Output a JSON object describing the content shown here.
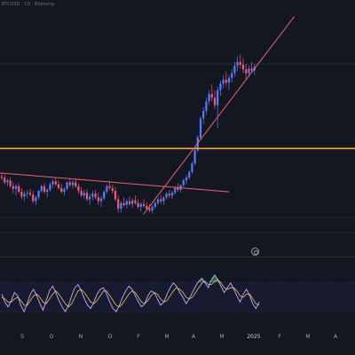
{
  "header": {
    "title": "BTCUSD · 1D · Bitstamp"
  },
  "price_pane": {
    "candles": [
      [
        48,
        52,
        44,
        47
      ],
      [
        47,
        50,
        40,
        42
      ],
      [
        42,
        46,
        38,
        44
      ],
      [
        44,
        47,
        36,
        38
      ],
      [
        38,
        42,
        30,
        35
      ],
      [
        35,
        40,
        28,
        38
      ],
      [
        38,
        41,
        30,
        32
      ],
      [
        32,
        36,
        24,
        27
      ],
      [
        27,
        33,
        22,
        30
      ],
      [
        30,
        34,
        25,
        31
      ],
      [
        31,
        35,
        27,
        29
      ],
      [
        29,
        33,
        20,
        22
      ],
      [
        22,
        28,
        18,
        26
      ],
      [
        26,
        34,
        24,
        33
      ],
      [
        33,
        40,
        31,
        38
      ],
      [
        38,
        41,
        30,
        32
      ],
      [
        32,
        36,
        26,
        34
      ],
      [
        34,
        42,
        32,
        40
      ],
      [
        40,
        45,
        36,
        43
      ],
      [
        43,
        47,
        38,
        40
      ],
      [
        40,
        44,
        34,
        36
      ],
      [
        36,
        40,
        30,
        32
      ],
      [
        32,
        37,
        28,
        35
      ],
      [
        35,
        43,
        33,
        42
      ],
      [
        42,
        46,
        37,
        39
      ],
      [
        39,
        44,
        35,
        42
      ],
      [
        42,
        46,
        36,
        38
      ],
      [
        38,
        41,
        30,
        33
      ],
      [
        33,
        37,
        26,
        28
      ],
      [
        28,
        34,
        24,
        31
      ],
      [
        31,
        35,
        22,
        24
      ],
      [
        24,
        30,
        18,
        27
      ],
      [
        27,
        33,
        23,
        30
      ],
      [
        30,
        34,
        24,
        26
      ],
      [
        26,
        31,
        18,
        22
      ],
      [
        22,
        28,
        16,
        25
      ],
      [
        25,
        34,
        23,
        32
      ],
      [
        32,
        40,
        30,
        38
      ],
      [
        38,
        44,
        34,
        36
      ],
      [
        36,
        40,
        30,
        33
      ],
      [
        33,
        37,
        22,
        24
      ],
      [
        24,
        28,
        10,
        14
      ],
      [
        14,
        22,
        10,
        20
      ],
      [
        20,
        26,
        16,
        18
      ],
      [
        18,
        24,
        14,
        22
      ],
      [
        22,
        27,
        17,
        19
      ],
      [
        19,
        25,
        15,
        23
      ],
      [
        23,
        28,
        18,
        20
      ],
      [
        20,
        24,
        14,
        16
      ],
      [
        16,
        21,
        11,
        19
      ],
      [
        19,
        24,
        15,
        17
      ],
      [
        17,
        21,
        12,
        14
      ],
      [
        14,
        19,
        10,
        12
      ],
      [
        12,
        18,
        9,
        16
      ],
      [
        16,
        22,
        14,
        20
      ],
      [
        20,
        26,
        18,
        24
      ],
      [
        24,
        28,
        19,
        22
      ],
      [
        22,
        27,
        18,
        26
      ],
      [
        26,
        32,
        24,
        30
      ],
      [
        30,
        34,
        25,
        28
      ],
      [
        28,
        33,
        24,
        31
      ],
      [
        31,
        38,
        29,
        36
      ],
      [
        36,
        41,
        32,
        34
      ],
      [
        34,
        40,
        31,
        39
      ],
      [
        39,
        46,
        37,
        44
      ],
      [
        44,
        50,
        40,
        47
      ],
      [
        47,
        55,
        45,
        53
      ],
      [
        53,
        64,
        51,
        62
      ],
      [
        62,
        78,
        60,
        76
      ],
      [
        76,
        92,
        74,
        90
      ],
      [
        90,
        112,
        88,
        110
      ],
      [
        110,
        122,
        104,
        118
      ],
      [
        118,
        132,
        114,
        128
      ],
      [
        128,
        140,
        124,
        136
      ],
      [
        136,
        146,
        128,
        132
      ],
      [
        132,
        140,
        120,
        124
      ],
      [
        124,
        144,
        100,
        140
      ],
      [
        140,
        150,
        134,
        147
      ],
      [
        147,
        156,
        142,
        151
      ],
      [
        151,
        160,
        144,
        148
      ],
      [
        148,
        156,
        140,
        153
      ],
      [
        153,
        162,
        148,
        158
      ],
      [
        158,
        170,
        154,
        166
      ],
      [
        166,
        176,
        160,
        170
      ],
      [
        170,
        178,
        163,
        167
      ],
      [
        167,
        174,
        158,
        162
      ],
      [
        162,
        168,
        152,
        158
      ],
      [
        158,
        166,
        154,
        163
      ],
      [
        163,
        170,
        158,
        161
      ],
      [
        161,
        168,
        156,
        165
      ]
    ],
    "horizontal_level": 78,
    "resistance_line": {
      "from": [
        0,
        52
      ],
      "to": [
        100,
        32
      ],
      "color": "#e8636f"
    },
    "support_line": {
      "from": [
        53,
        8
      ],
      "to": [
        128,
        190
      ],
      "color": "#e8636f"
    },
    "level_color": "#f7a53b",
    "up_color": "#5b7cfa",
    "down_color": "#ef5a7a"
  },
  "oscillator": {
    "main": [
      0.2,
      -0.3,
      -0.6,
      -0.2,
      0.3,
      0.1,
      -0.5,
      -0.9,
      -0.4,
      0.2,
      0.5,
      0.1,
      -0.4,
      -0.8,
      -0.2,
      0.4,
      0.7,
      0.3,
      -0.2,
      -0.6,
      -0.9,
      -0.5,
      0.1,
      0.6,
      0.8,
      0.4,
      -0.1,
      -0.5,
      -0.7,
      -0.3,
      0.2,
      0.5,
      0.6,
      0.2,
      -0.3,
      -0.7,
      -0.9,
      -0.5,
      0.0,
      0.4,
      0.7,
      0.5,
      0.1,
      -0.3,
      -0.6,
      -0.4,
      0.1,
      0.4,
      0.3,
      -0.1,
      -0.5,
      -0.3,
      0.2,
      0.6,
      0.9,
      0.7,
      0.3,
      0.0,
      -0.4,
      -0.1,
      0.3,
      0.7,
      1.0,
      1.2,
      0.9,
      0.6,
      1.1,
      1.4,
      1.1,
      0.7,
      0.3,
      0.6,
      0.9,
      0.5,
      0.1,
      -0.3,
      0.2,
      0.5,
      0.1,
      -0.4,
      -0.7,
      -0.3
    ],
    "signal": [
      0.0,
      -0.1,
      -0.3,
      -0.3,
      -0.1,
      0.0,
      -0.2,
      -0.5,
      -0.5,
      -0.2,
      0.1,
      0.2,
      0.0,
      -0.3,
      -0.4,
      -0.1,
      0.2,
      0.4,
      0.2,
      -0.1,
      -0.4,
      -0.6,
      -0.4,
      0.0,
      0.4,
      0.5,
      0.3,
      0.0,
      -0.3,
      -0.4,
      -0.2,
      0.1,
      0.4,
      0.4,
      0.1,
      -0.2,
      -0.5,
      -0.6,
      -0.4,
      -0.1,
      0.2,
      0.4,
      0.3,
      0.0,
      -0.3,
      -0.4,
      -0.2,
      0.1,
      0.3,
      0.2,
      -0.1,
      -0.3,
      -0.2,
      0.1,
      0.4,
      0.6,
      0.5,
      0.3,
      0.0,
      -0.1,
      0.0,
      0.3,
      0.6,
      0.9,
      1.0,
      0.8,
      0.8,
      1.0,
      1.1,
      0.9,
      0.6,
      0.5,
      0.6,
      0.6,
      0.4,
      0.1,
      0.0,
      0.2,
      0.2,
      -0.1,
      -0.4,
      -0.5
    ],
    "main_color": "#c9a9ff",
    "signal_color": "#e7c86a",
    "overbought_fill": "#2bb673"
  },
  "time_axis": {
    "ticks": [
      {
        "label": "S",
        "bold": false
      },
      {
        "label": "O",
        "bold": false
      },
      {
        "label": "N",
        "bold": false
      },
      {
        "label": "D",
        "bold": false
      },
      {
        "label": "F",
        "bold": false
      },
      {
        "label": "M",
        "bold": false
      },
      {
        "label": "A",
        "bold": false
      },
      {
        "label": "M",
        "bold": false
      },
      {
        "label": "2025",
        "bold": true
      },
      {
        "label": "F",
        "bold": false
      },
      {
        "label": "M",
        "bold": false
      },
      {
        "label": "A",
        "bold": false
      }
    ]
  }
}
